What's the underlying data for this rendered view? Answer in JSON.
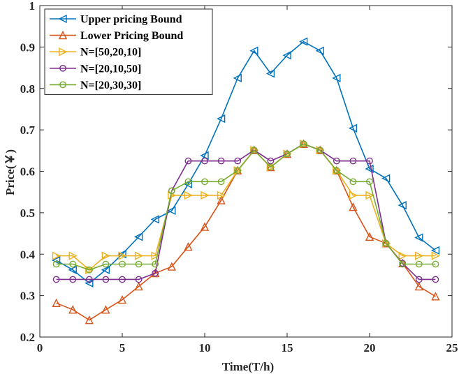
{
  "chart_data": {
    "type": "line",
    "xlabel": "Time(T/h)",
    "ylabel": "Price(￥)",
    "xlim": [
      0,
      25
    ],
    "ylim": [
      0.2,
      1
    ],
    "xticks": [
      0,
      5,
      10,
      15,
      20,
      25
    ],
    "xtick_labels": [
      "0",
      "5",
      "10",
      "15",
      "20",
      "25"
    ],
    "yticks": [
      0.2,
      0.3,
      0.4,
      0.5,
      0.6,
      0.7,
      0.8,
      0.9,
      1
    ],
    "ytick_labels": [
      "0.2",
      "0.3",
      "0.4",
      "0.5",
      "0.6",
      "0.7",
      "0.8",
      "0.9",
      "1"
    ],
    "grid": false,
    "legend_position": "top-left",
    "x": [
      1,
      2,
      3,
      4,
      5,
      6,
      7,
      8,
      9,
      10,
      11,
      12,
      13,
      14,
      15,
      16,
      17,
      18,
      19,
      20,
      21,
      22,
      23,
      24
    ],
    "series": [
      {
        "name": "Upper pricing Bound",
        "color": "#0072BD",
        "marker": "triangle-left",
        "values": [
          0.385,
          0.362,
          0.33,
          0.362,
          0.4,
          0.442,
          0.484,
          0.505,
          0.569,
          0.638,
          0.727,
          0.825,
          0.891,
          0.836,
          0.88,
          0.913,
          0.891,
          0.825,
          0.704,
          0.606,
          0.583,
          0.518,
          0.44,
          0.409
        ]
      },
      {
        "name": "Lower Pricing Bound",
        "color": "#D95319",
        "marker": "triangle-up",
        "values": [
          0.282,
          0.266,
          0.241,
          0.266,
          0.29,
          0.322,
          0.354,
          0.37,
          0.418,
          0.466,
          0.53,
          0.602,
          0.651,
          0.61,
          0.642,
          0.666,
          0.651,
          0.602,
          0.514,
          0.442,
          0.426,
          0.378,
          0.322,
          0.298
        ]
      },
      {
        "name": "N=[50,20,10]",
        "color": "#EDB120",
        "marker": "triangle-right",
        "values": [
          0.396,
          0.396,
          0.362,
          0.396,
          0.396,
          0.396,
          0.396,
          0.542,
          0.542,
          0.542,
          0.542,
          0.602,
          0.651,
          0.61,
          0.642,
          0.666,
          0.651,
          0.602,
          0.542,
          0.542,
          0.426,
          0.396,
          0.396,
          0.396
        ]
      },
      {
        "name": "N=[20,10,50]",
        "color": "#7E2F8E",
        "marker": "circle",
        "values": [
          0.339,
          0.339,
          0.339,
          0.339,
          0.339,
          0.339,
          0.354,
          0.553,
          0.625,
          0.625,
          0.625,
          0.625,
          0.651,
          0.625,
          0.642,
          0.666,
          0.651,
          0.625,
          0.625,
          0.625,
          0.426,
          0.378,
          0.339,
          0.339
        ]
      },
      {
        "name": "N=[20,30,30]",
        "color": "#77AC30",
        "marker": "circle",
        "values": [
          0.376,
          0.376,
          0.362,
          0.376,
          0.376,
          0.376,
          0.376,
          0.553,
          0.575,
          0.575,
          0.575,
          0.602,
          0.651,
          0.61,
          0.642,
          0.666,
          0.651,
          0.602,
          0.575,
          0.575,
          0.426,
          0.376,
          0.376,
          0.376
        ]
      }
    ]
  }
}
